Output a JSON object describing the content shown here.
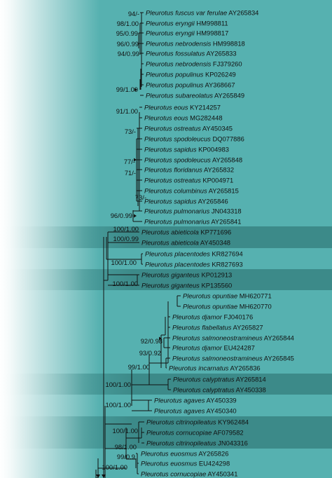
{
  "background": {
    "base_color": "#56b1b0",
    "fade_to": "#ffffff",
    "band_color": "#3c8a89"
  },
  "leaves": [
    {
      "genus": "Pleurotus",
      "epithet": "fuscus var ferulae",
      "acc": "AY265834"
    },
    {
      "genus": "Pleurotus",
      "epithet": "eryngii",
      "acc": "HM998811"
    },
    {
      "genus": "Pleurotus",
      "epithet": "eryngii",
      "acc": "HM998817"
    },
    {
      "genus": "Pleurotus",
      "epithet": "nebrodensis",
      "acc": "HM998818"
    },
    {
      "genus": "Pleurotus",
      "epithet": "fossulatus",
      "acc": "AY265833"
    },
    {
      "genus": "Pleurotus",
      "epithet": "nebrodensis",
      "acc": "FJ379260"
    },
    {
      "genus": "Pleurotus",
      "epithet": "populinus",
      "acc": "KP026249"
    },
    {
      "genus": "Pleurotus",
      "epithet": "populinus",
      "acc": "AY368667"
    },
    {
      "genus": "Pleurotus",
      "epithet": "subareolatus",
      "acc": "AY265849"
    },
    {
      "genus": "Pleurotus",
      "epithet": "eous",
      "acc": "KY214257"
    },
    {
      "genus": "Pleurotus",
      "epithet": "eous",
      "acc": "MG282448"
    },
    {
      "genus": "Pleurotus",
      "epithet": "ostreatus",
      "acc": "AY450345"
    },
    {
      "genus": "Pleurotus",
      "epithet": "spodoleucus",
      "acc": "DQ077886"
    },
    {
      "genus": "Pleurotus",
      "epithet": "sapidus",
      "acc": "KP004983"
    },
    {
      "genus": "Pleurotus",
      "epithet": "spodoleucus",
      "acc": "AY265848"
    },
    {
      "genus": "Pleurotus",
      "epithet": "floridanus",
      "acc": "AY265832"
    },
    {
      "genus": "Pleurotus",
      "epithet": "ostreatus",
      "acc": "KP004971"
    },
    {
      "genus": "Pleurotus",
      "epithet": "columbinus",
      "acc": "AY265815"
    },
    {
      "genus": "Pleurotus",
      "epithet": "sapidus",
      "acc": "AY265846"
    },
    {
      "genus": "Pleurotus",
      "epithet": "pulmonarius",
      "acc": "JN043318"
    },
    {
      "genus": "Pleurotus",
      "epithet": "pulmonarius",
      "acc": "AY265841"
    },
    {
      "genus": "Pleurotus",
      "epithet": "abieticola",
      "acc": "KP771696"
    },
    {
      "genus": "Pleurotus",
      "epithet": "abieticola",
      "acc": "AY450348"
    },
    {
      "genus": "Pleurotus",
      "epithet": "placentodes",
      "acc": "KR827694"
    },
    {
      "genus": "Pleurotus",
      "epithet": "placentodes",
      "acc": "KR827693"
    },
    {
      "genus": "Pleurotus",
      "epithet": "giganteus",
      "acc": "KP012913"
    },
    {
      "genus": "Pleurotus",
      "epithet": "giganteus",
      "acc": "KP135560"
    },
    {
      "genus": "Pleurotus",
      "epithet": "opuntiae",
      "acc": "MH620771"
    },
    {
      "genus": "Pleurotus",
      "epithet": "opuntiae",
      "acc": "MH620770"
    },
    {
      "genus": "Pleurotus",
      "epithet": "djamor",
      "acc": "FJ040176"
    },
    {
      "genus": "Pleurotus",
      "epithet": "flabellatus",
      "acc": "AY265827"
    },
    {
      "genus": "Pleurotus",
      "epithet": "salmoneostramineus",
      "acc": "AY265844"
    },
    {
      "genus": "Pleurotus",
      "epithet": "djamor",
      "acc": "EU424287"
    },
    {
      "genus": "Pleurotus",
      "epithet": "salmoneostramineus",
      "acc": "AY265845"
    },
    {
      "genus": "Pleurotus",
      "epithet": "incarnatus",
      "acc": "AY265836"
    },
    {
      "genus": "Pleurotus",
      "epithet": "calyptratus",
      "acc": "AY265814"
    },
    {
      "genus": "Pleurotus",
      "epithet": "calyptratus",
      "acc": "AY450338"
    },
    {
      "genus": "Pleurotus",
      "epithet": "agaves",
      "acc": "AY450339"
    },
    {
      "genus": "Pleurotus",
      "epithet": "agaves",
      "acc": "AY450340"
    },
    {
      "genus": "Pleurotus",
      "epithet": "citrinopileatus",
      "acc": "KY962484"
    },
    {
      "genus": "Pleurotus",
      "epithet": "cornucopiae",
      "acc": "AF079582"
    },
    {
      "genus": "Pleurotus",
      "epithet": "citrinopileatus",
      "acc": "JN043316"
    },
    {
      "genus": "Pleurotus",
      "epithet": "euosmus",
      "acc": "AY265826"
    },
    {
      "genus": "Pleurotus",
      "epithet": "euosmus",
      "acc": "EU424298"
    },
    {
      "genus": "Pleurotus",
      "epithet": "cornucopiae",
      "acc": "AY450341"
    }
  ],
  "support": [
    "94/-",
    "98/1.00",
    "95/0.99",
    "96/0.99",
    "94/0.99",
    "99/1.00",
    "91/1.00",
    "73/-",
    "77/-",
    "71/-",
    "73/-",
    "96/0.99",
    "100/1.00",
    "100/0.99",
    "100/1.00",
    "100/1.00",
    "92/0.98",
    "93/0.92",
    "99/1.00",
    "100/1.00",
    "100/1.00",
    "100/1.00",
    "98/1.00",
    "99/0.9",
    "100/1.00"
  ]
}
